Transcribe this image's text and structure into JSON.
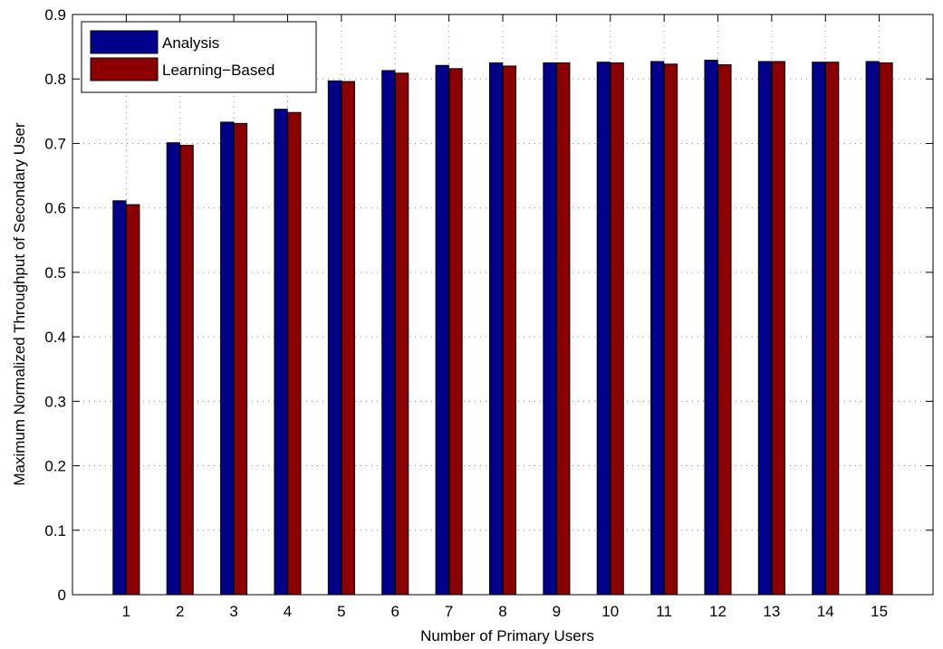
{
  "chart_data": {
    "type": "bar",
    "xlabel": "Number of Primary Users",
    "ylabel": "Maximum Normalized Throughput of Secondary User",
    "categories": [
      "1",
      "2",
      "3",
      "4",
      "5",
      "6",
      "7",
      "8",
      "9",
      "10",
      "11",
      "12",
      "13",
      "14",
      "15"
    ],
    "ylim": [
      0,
      0.9
    ],
    "yticks": [
      "0",
      "0.1",
      "0.2",
      "0.3",
      "0.4",
      "0.5",
      "0.6",
      "0.7",
      "0.8",
      "0.9"
    ],
    "grid": true,
    "legend_position": "top-left",
    "series": [
      {
        "name": "Analysis",
        "color": "#00008b",
        "values": [
          0.611,
          0.701,
          0.733,
          0.753,
          0.797,
          0.813,
          0.821,
          0.825,
          0.825,
          0.826,
          0.827,
          0.829,
          0.827,
          0.826,
          0.827
        ]
      },
      {
        "name": "Learning−Based",
        "color": "#8b0000",
        "values": [
          0.605,
          0.697,
          0.731,
          0.748,
          0.796,
          0.809,
          0.816,
          0.82,
          0.825,
          0.825,
          0.823,
          0.822,
          0.827,
          0.826,
          0.825
        ]
      }
    ]
  }
}
